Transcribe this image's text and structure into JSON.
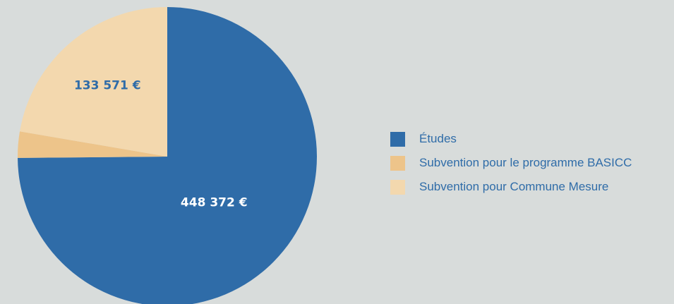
{
  "chart_data": {
    "type": "pie",
    "title": "",
    "start": "top, clockwise",
    "slices": [
      {
        "name": "Études",
        "value": 448372,
        "label": "448 372 €",
        "color": "#2f6ca8",
        "label_color": "#ffffff"
      },
      {
        "name": "Subvention pour le programme BASICC",
        "value": 17000,
        "label": "",
        "color": "#edc48a",
        "label_color": "#2f6ca8"
      },
      {
        "name": "Subvention pour Commune Mesure",
        "value": 133571,
        "label": "133 571 €",
        "color": "#f3d8ae",
        "label_color": "#2f6ca8"
      }
    ],
    "legend_position": "right"
  }
}
